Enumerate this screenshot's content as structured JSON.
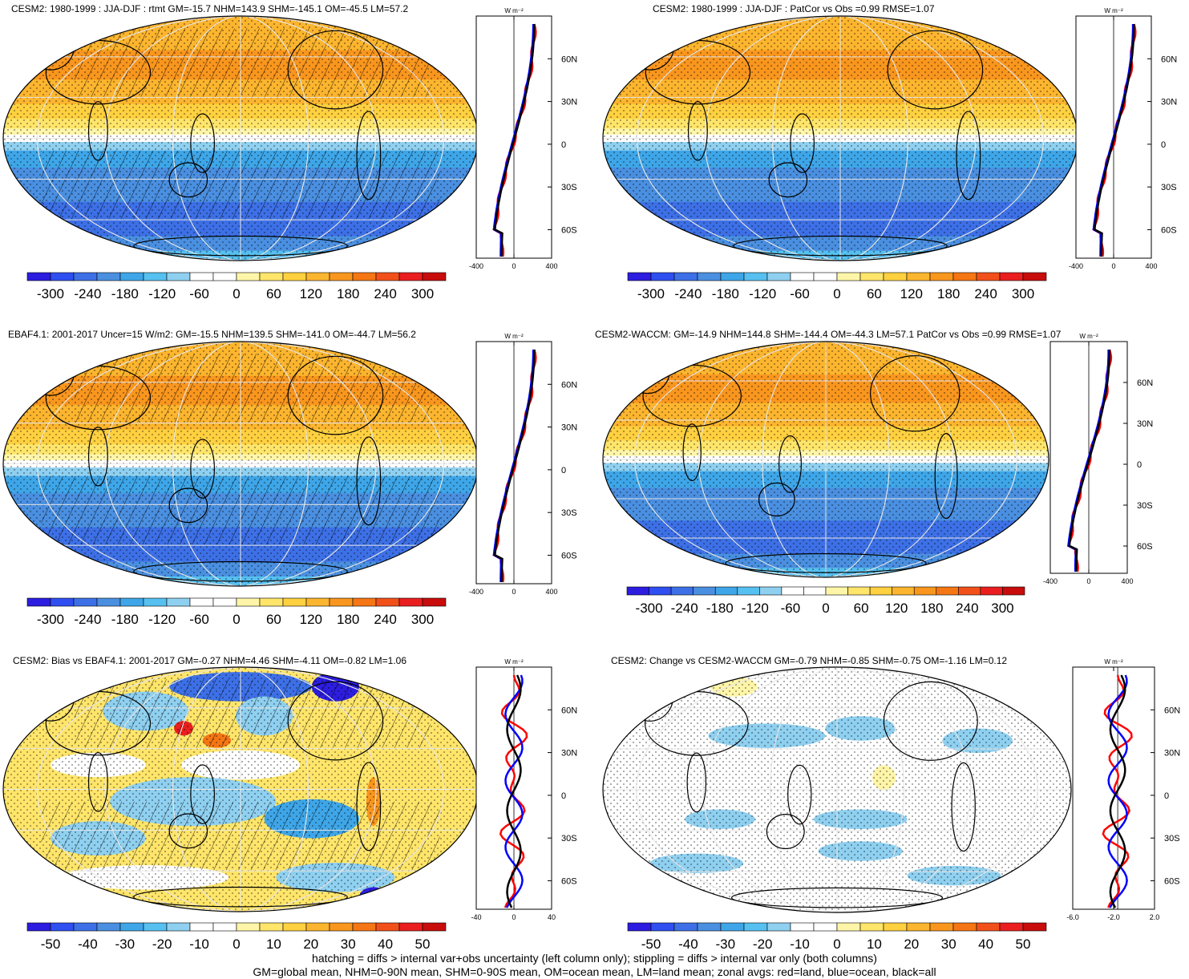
{
  "panels": [
    {
      "title": "CESM2: 1980-1999 : JJA-DJF : rtmt GM=-15.7 NHM=143.9 SHM=-145.1 OM=-45.5 LM=57.2",
      "zonal_xticks": [
        "-400",
        "0",
        "400"
      ],
      "zonal_unit": "W m⁻²",
      "lat_ticks": [
        "60N",
        "30N",
        "0",
        "30S",
        "60S"
      ],
      "cbar_labels": [
        "-300",
        "-240",
        "-180",
        "-120",
        "-60",
        "0",
        "60",
        "120",
        "180",
        "240",
        "300"
      ],
      "kind": "field",
      "hatch": true
    },
    {
      "title": "CESM2: 1980-1999 : JJA-DJF : PatCor vs Obs =0.99 RMSE=1.07",
      "zonal_xticks": [
        "-400",
        "0",
        "400"
      ],
      "zonal_unit": "W m⁻²",
      "lat_ticks": [
        "60N",
        "30N",
        "0",
        "30S",
        "60S"
      ],
      "cbar_labels": [
        "-300",
        "-240",
        "-180",
        "-120",
        "-60",
        "0",
        "60",
        "120",
        "180",
        "240",
        "300"
      ],
      "kind": "field",
      "hatch": false
    },
    {
      "title": "EBAF4.1: 2001-2017 Uncer=15 W/m2: GM=-15.5 NHM=139.5 SHM=-141.0 OM=-44.7 LM=56.2",
      "zonal_xticks": [
        "-400",
        "0",
        "400"
      ],
      "zonal_unit": "W m⁻²",
      "lat_ticks": [
        "60N",
        "30N",
        "0",
        "30S",
        "60S"
      ],
      "cbar_labels": [
        "-300",
        "-240",
        "-180",
        "-120",
        "-60",
        "0",
        "60",
        "120",
        "180",
        "240",
        "300"
      ],
      "kind": "field",
      "hatch": true
    },
    {
      "title": "CESM2-WACCM: GM=-14.9 NHM=144.8 SHM=-144.4 OM=-44.3 LM=57.1 PatCor vs Obs =0.99 RMSE=1.07",
      "zonal_xticks": [
        "-400",
        "0",
        "400"
      ],
      "zonal_unit": "W m⁻²",
      "lat_ticks": [
        "60N",
        "30N",
        "0",
        "30S",
        "60S"
      ],
      "cbar_labels": [
        "-300",
        "-240",
        "-180",
        "-120",
        "-60",
        "0",
        "60",
        "120",
        "180",
        "240",
        "300"
      ],
      "kind": "field",
      "hatch": false
    },
    {
      "title": "CESM2: Bias vs EBAF4.1: 2001-2017 GM=-0.27 NHM=4.46 SHM=-4.11 OM=-0.82 LM=1.06",
      "zonal_xticks": [
        "-40",
        "0",
        "40"
      ],
      "zonal_unit": "W m⁻²",
      "lat_ticks": [
        "60N",
        "30N",
        "0",
        "30S",
        "60S"
      ],
      "cbar_labels": [
        "-50",
        "-40",
        "-30",
        "-20",
        "-10",
        "0",
        "10",
        "20",
        "30",
        "40",
        "50"
      ],
      "kind": "bias",
      "hatch": true
    },
    {
      "title": "CESM2: Change vs CESM2-WACCM GM=-0.79 NHM=-0.85 SHM=-0.75 OM=-1.16 LM=0.12",
      "zonal_xticks": [
        "-6.0",
        "-2.0",
        "2.0"
      ],
      "zonal_unit": "W m⁻²",
      "lat_ticks": [
        "60N",
        "30N",
        "0",
        "30S",
        "60S"
      ],
      "cbar_labels": [
        "-50",
        "-40",
        "-30",
        "-20",
        "-10",
        "0",
        "10",
        "20",
        "30",
        "40",
        "50"
      ],
      "kind": "change",
      "hatch": false
    }
  ],
  "colors": {
    "cbar": [
      "#2c1de0",
      "#2f4ff0",
      "#3d70e6",
      "#4a8fe0",
      "#3ea6e8",
      "#56c0f0",
      "#8fd0f0",
      "#ffffff",
      "#ffffff",
      "#fff5a8",
      "#ffe56a",
      "#ffd040",
      "#fcb52e",
      "#f9961e",
      "#f57614",
      "#f2501a",
      "#ea1e1e",
      "#c80c0c"
    ],
    "land": "#000000",
    "series_land": "#ff0000",
    "series_ocean": "#0000ff",
    "series_all": "#000000"
  },
  "footer": {
    "line1": "hatching = diffs > internal var+obs uncertainty (left column only); stippling = diffs > internal var only (both columns)",
    "line2": "GM=global mean, NHM=0-90N mean, SHM=0-90S mean, OM=ocean mean, LM=land mean; zonal avgs: red=land, blue=ocean, black=all"
  }
}
